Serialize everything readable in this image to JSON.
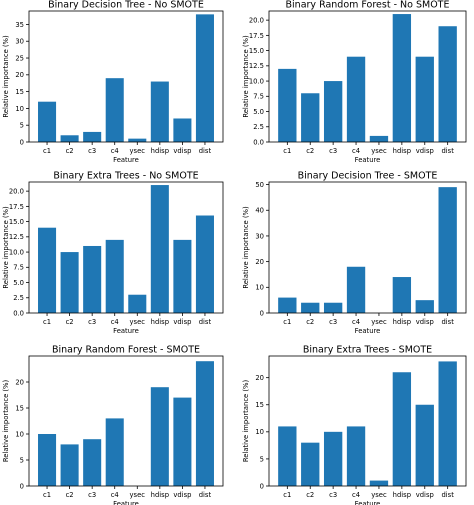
{
  "chart_data": [
    {
      "type": "bar",
      "title": "Binary Decision Tree - No SMOTE",
      "xlabel": "Feature",
      "ylabel": "Relative importance (%)",
      "categories": [
        "c1",
        "c2",
        "c3",
        "c4",
        "ysec",
        "hdisp",
        "vdisp",
        "dist"
      ],
      "values": [
        12,
        2,
        3,
        19,
        1,
        18,
        7,
        38
      ],
      "ylim": [
        0,
        39
      ],
      "yticks": [
        0,
        5,
        10,
        15,
        20,
        25,
        30,
        35
      ],
      "tick_decimals": 0,
      "bar_color": "#1f77b4",
      "grid": false
    },
    {
      "type": "bar",
      "title": "Binary Random Forest - No SMOTE",
      "xlabel": "Feature",
      "ylabel": "Relative importance (%)",
      "categories": [
        "c1",
        "c2",
        "c3",
        "c4",
        "ysec",
        "hdisp",
        "vdisp",
        "dist"
      ],
      "values": [
        12,
        8,
        10,
        14,
        1,
        21,
        14,
        19
      ],
      "ylim": [
        0,
        21.5
      ],
      "yticks": [
        0,
        2.5,
        5,
        7.5,
        10,
        12.5,
        15,
        17.5,
        20
      ],
      "tick_decimals": 1,
      "bar_color": "#1f77b4",
      "grid": false
    },
    {
      "type": "bar",
      "title": "Binary Extra Trees - No SMOTE",
      "xlabel": "Feature",
      "ylabel": "Relative importance (%)",
      "categories": [
        "c1",
        "c2",
        "c3",
        "c4",
        "ysec",
        "hdisp",
        "vdisp",
        "dist"
      ],
      "values": [
        14,
        10,
        11,
        12,
        3,
        21,
        12,
        16
      ],
      "ylim": [
        0,
        21.5
      ],
      "yticks": [
        0,
        2.5,
        5,
        7.5,
        10,
        12.5,
        15,
        17.5,
        20
      ],
      "tick_decimals": 1,
      "bar_color": "#1f77b4",
      "grid": false
    },
    {
      "type": "bar",
      "title": "Binary Decision Tree - SMOTE",
      "xlabel": "Feature",
      "ylabel": "Relative importance (%)",
      "categories": [
        "c1",
        "c2",
        "c3",
        "c4",
        "ysec",
        "hdisp",
        "vdisp",
        "dist"
      ],
      "values": [
        6,
        4,
        4,
        18,
        0,
        14,
        5,
        49
      ],
      "ylim": [
        0,
        51
      ],
      "yticks": [
        0,
        10,
        20,
        30,
        40,
        50
      ],
      "tick_decimals": 0,
      "bar_color": "#1f77b4",
      "grid": false
    },
    {
      "type": "bar",
      "title": "Binary Random Forest - SMOTE",
      "xlabel": "Feature",
      "ylabel": "Relative importance (%)",
      "categories": [
        "c1",
        "c2",
        "c3",
        "c4",
        "ysec",
        "hdisp",
        "vdisp",
        "dist"
      ],
      "values": [
        10,
        8,
        9,
        13,
        0,
        19,
        17,
        24
      ],
      "ylim": [
        0,
        25
      ],
      "yticks": [
        0,
        5,
        10,
        15,
        20
      ],
      "tick_decimals": 0,
      "bar_color": "#1f77b4",
      "grid": false
    },
    {
      "type": "bar",
      "title": "Binary Extra Trees - SMOTE",
      "xlabel": "Feature",
      "ylabel": "Relative importance (%)",
      "categories": [
        "c1",
        "c2",
        "c3",
        "c4",
        "ysec",
        "hdisp",
        "vdisp",
        "dist"
      ],
      "values": [
        11,
        8,
        10,
        11,
        1,
        21,
        15,
        23
      ],
      "ylim": [
        0,
        24
      ],
      "yticks": [
        0,
        5,
        10,
        15,
        20
      ],
      "tick_decimals": 0,
      "bar_color": "#1f77b4",
      "grid": false
    }
  ]
}
